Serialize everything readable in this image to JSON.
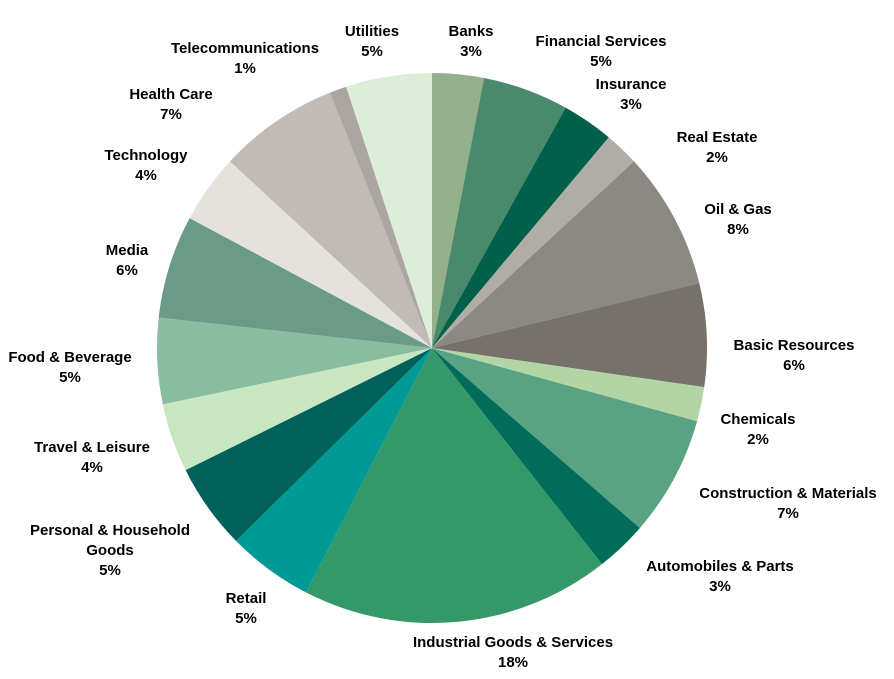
{
  "chart_data": {
    "type": "pie",
    "title": "",
    "start": "top",
    "direction": "clockwise",
    "categories": [
      "Banks",
      "Financial Services",
      "Insurance",
      "Real Estate",
      "Oil & Gas",
      "Basic Resources",
      "Chemicals",
      "Construction & Materials",
      "Automobiles & Parts",
      "Industrial Goods & Services",
      "Retail",
      "Personal & Household Goods",
      "Travel & Leisure",
      "Food & Beverage",
      "Media",
      "Technology",
      "Health Care",
      "Telecommunications",
      "Utilities"
    ],
    "values": [
      3,
      5,
      3,
      2,
      8,
      6,
      2,
      7,
      3,
      18,
      5,
      5,
      4,
      5,
      6,
      4,
      7,
      1,
      5
    ],
    "labels": [
      "3%",
      "5%",
      "3%",
      "2%",
      "8%",
      "6%",
      "2%",
      "7%",
      "3%",
      "18%",
      "5%",
      "5%",
      "4%",
      "5%",
      "6%",
      "4%",
      "7%",
      "1%",
      "5%"
    ],
    "colors": [
      "#93b08a",
      "#4a8a6c",
      "#00604a",
      "#b0aca6",
      "#8c8882",
      "#77716c",
      "#b2d5a6",
      "#5aa382",
      "#006d5a",
      "#359868",
      "#009a96",
      "#00605c",
      "#c8e6c0",
      "#88bda0",
      "#6a9a88",
      "#e5e2dd",
      "#c0bbb6",
      "#aca6a2",
      "#ddeed8"
    ],
    "legend": "none"
  }
}
